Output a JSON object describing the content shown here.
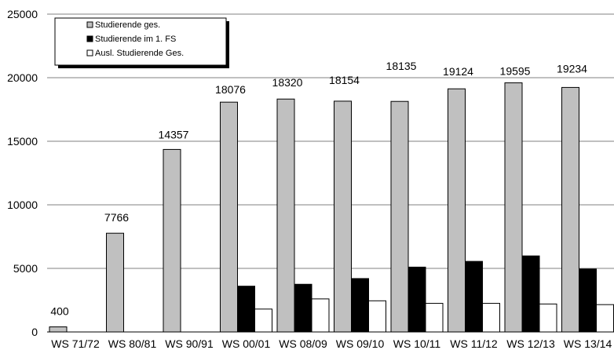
{
  "chart_data": {
    "type": "bar",
    "categories": [
      "WS 71/72",
      "WS 80/81",
      "WS 90/91",
      "WS 00/01",
      "WS 08/09",
      "WS 09/10",
      "WS 10/11",
      "WS 11/12",
      "WS 12/13",
      "WS 13/14"
    ],
    "series": [
      {
        "name": "Studierende ges.",
        "values": [
          400,
          7766,
          14357,
          18076,
          18320,
          18154,
          18135,
          19124,
          19595,
          19234
        ],
        "color": "#c0c0c0",
        "labels": true
      },
      {
        "name": "Studierende im 1. FS",
        "values": [
          0,
          0,
          0,
          3600,
          3750,
          4200,
          5100,
          5550,
          5980,
          4950
        ],
        "color": "#000000",
        "labels": false
      },
      {
        "name": "Ausl. Studierende Ges.",
        "values": [
          0,
          0,
          0,
          1800,
          2600,
          2450,
          2250,
          2250,
          2200,
          2150
        ],
        "color": "#ffffff",
        "labels": false
      }
    ],
    "ylim": [
      0,
      25000
    ],
    "yticks": [
      0,
      5000,
      10000,
      15000,
      20000,
      25000
    ],
    "grid": true,
    "legend_position": "top-left",
    "title": "",
    "xlabel": "",
    "ylabel": ""
  }
}
